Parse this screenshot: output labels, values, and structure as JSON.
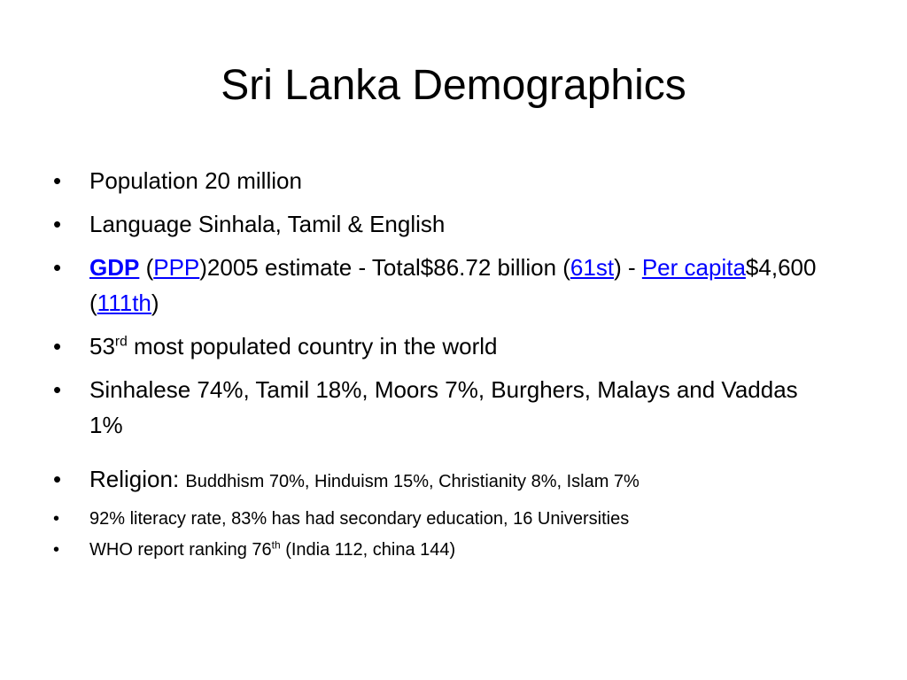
{
  "slide": {
    "title": "Sri Lanka Demographics",
    "bullet_char": "•",
    "bullets": {
      "population": "Population 20 million",
      "language": "Language Sinhala, Tamil & English",
      "gdp": {
        "gdp_link": "GDP",
        "open_paren": " (",
        "ppp_link": "PPP",
        "estimate_text": ")2005 estimate - Total$86.72 billion (",
        "rank_link": "61st",
        "dash_text": ") - ",
        "per_capita_link": "Per capita",
        "per_capita_value": "$4,600 (",
        "per_capita_rank_link": "111th",
        "close_paren": ")"
      },
      "populated": {
        "number": "53",
        "suffix": "rd",
        "rest": " most populated country in the world"
      },
      "ethnic": "Sinhalese 74%, Tamil 18%, Moors 7%, Burghers, Malays and Vaddas 1%",
      "religion": {
        "label": "Religion: ",
        "detail": "Buddhism 70%, Hinduism 15%, Christianity 8%, Islam 7%"
      },
      "literacy": "92% literacy rate, 83% has had secondary education, 16 Universities",
      "who": {
        "prefix": "WHO report ranking 76",
        "suffix": "th",
        "rest": " (India 112, china 144)"
      }
    }
  },
  "colors": {
    "link": "#0000ff",
    "text": "#000000",
    "background": "#ffffff"
  }
}
